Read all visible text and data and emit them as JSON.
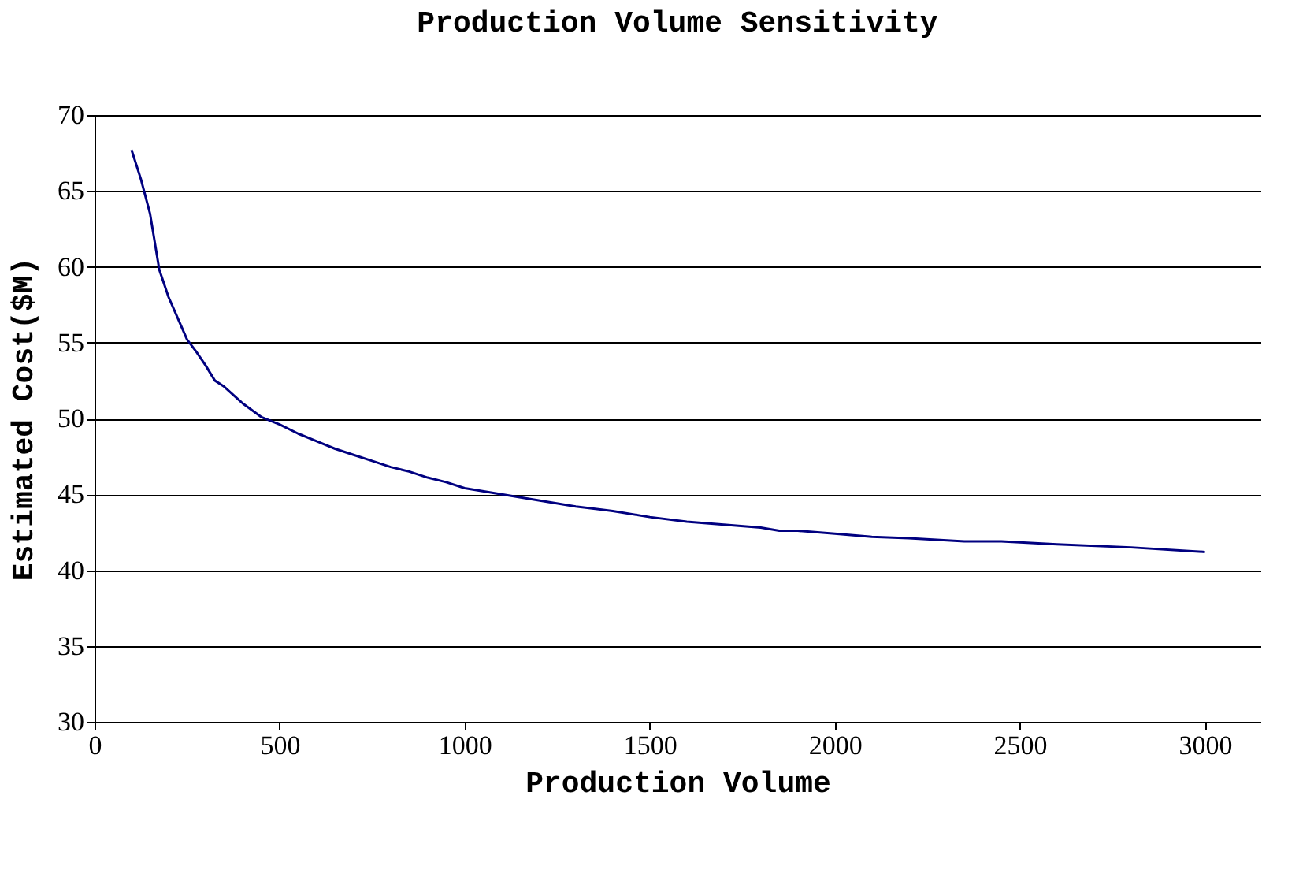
{
  "chart_data": {
    "type": "line",
    "title": "Production Volume Sensitivity",
    "xlabel": "Production Volume",
    "ylabel": "Estimated Cost($M)",
    "x": [
      100,
      125,
      150,
      175,
      200,
      225,
      250,
      275,
      300,
      325,
      350,
      400,
      450,
      500,
      550,
      600,
      650,
      700,
      750,
      800,
      850,
      900,
      950,
      1000,
      1100,
      1200,
      1300,
      1400,
      1500,
      1600,
      1700,
      1800,
      1850,
      1900,
      2000,
      2100,
      2200,
      2350,
      2450,
      2600,
      2800,
      3000
    ],
    "series": [
      {
        "color": "#000080",
        "values": [
          67.7,
          65.8,
          63.5,
          59.8,
          58,
          56.6,
          55.2,
          54.4,
          53.5,
          52.5,
          52.1,
          51,
          50.1,
          49.6,
          49,
          48.5,
          48,
          47.6,
          47.2,
          46.8,
          46.5,
          46.1,
          45.8,
          45.4,
          45.0,
          44.6,
          44.2,
          43.9,
          43.5,
          43.2,
          43.0,
          42.8,
          42.6,
          42.6,
          42.4,
          42.2,
          42.1,
          41.9,
          41.9,
          41.7,
          41.5,
          41.2
        ]
      }
    ],
    "xlim": [
      0,
      3150
    ],
    "xticks": [
      0,
      500,
      1000,
      1500,
      2000,
      2500,
      3000
    ],
    "ylim": [
      30,
      70
    ],
    "yticks": [
      30,
      35,
      40,
      45,
      50,
      55,
      60,
      65,
      70
    ],
    "grid": "y",
    "legend": false,
    "marker": "none",
    "line_style": "solid"
  }
}
